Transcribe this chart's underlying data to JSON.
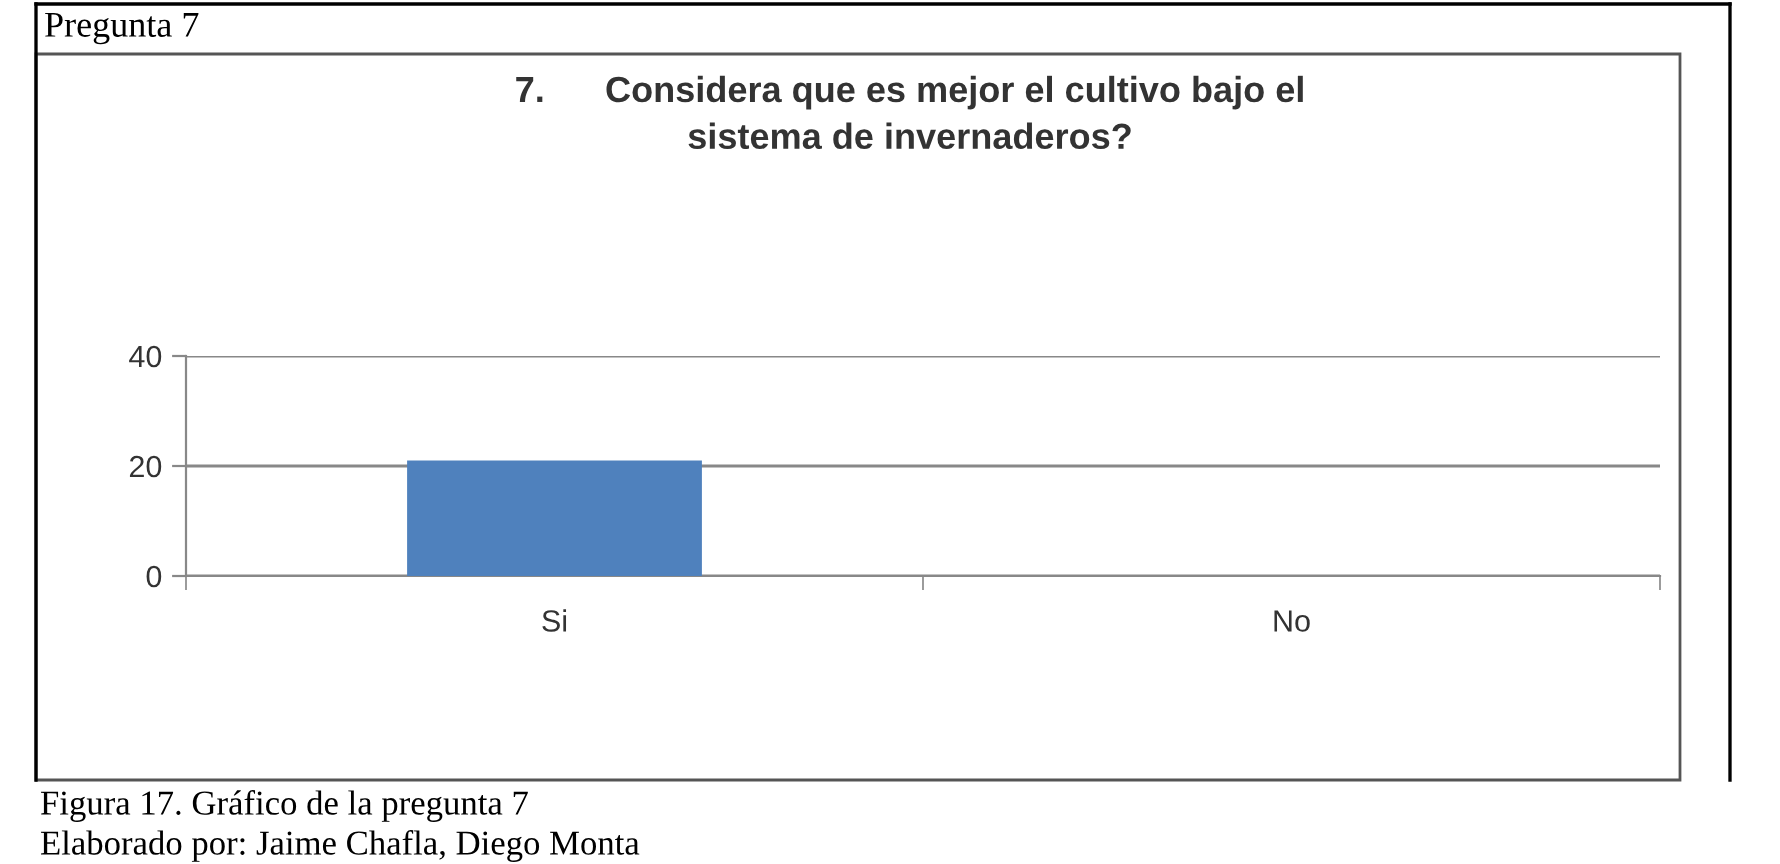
{
  "chart_data": {
    "type": "bar",
    "title": "7.      Considera que es mejor el cultivo bajo el\nsistema de invernaderos?",
    "categories": [
      "Si",
      "No"
    ],
    "values": [
      21,
      0
    ],
    "color": "#4f81bd",
    "ylim": [
      0,
      40
    ],
    "yticks": [
      0,
      20,
      40
    ],
    "grid": "y",
    "legend": false,
    "annotations": [
      "Pregunta 7",
      "Figura 17. Gráfico de la pregunta 7",
      "Elaborado por: Jaime Chafla, Diego Monta"
    ]
  }
}
